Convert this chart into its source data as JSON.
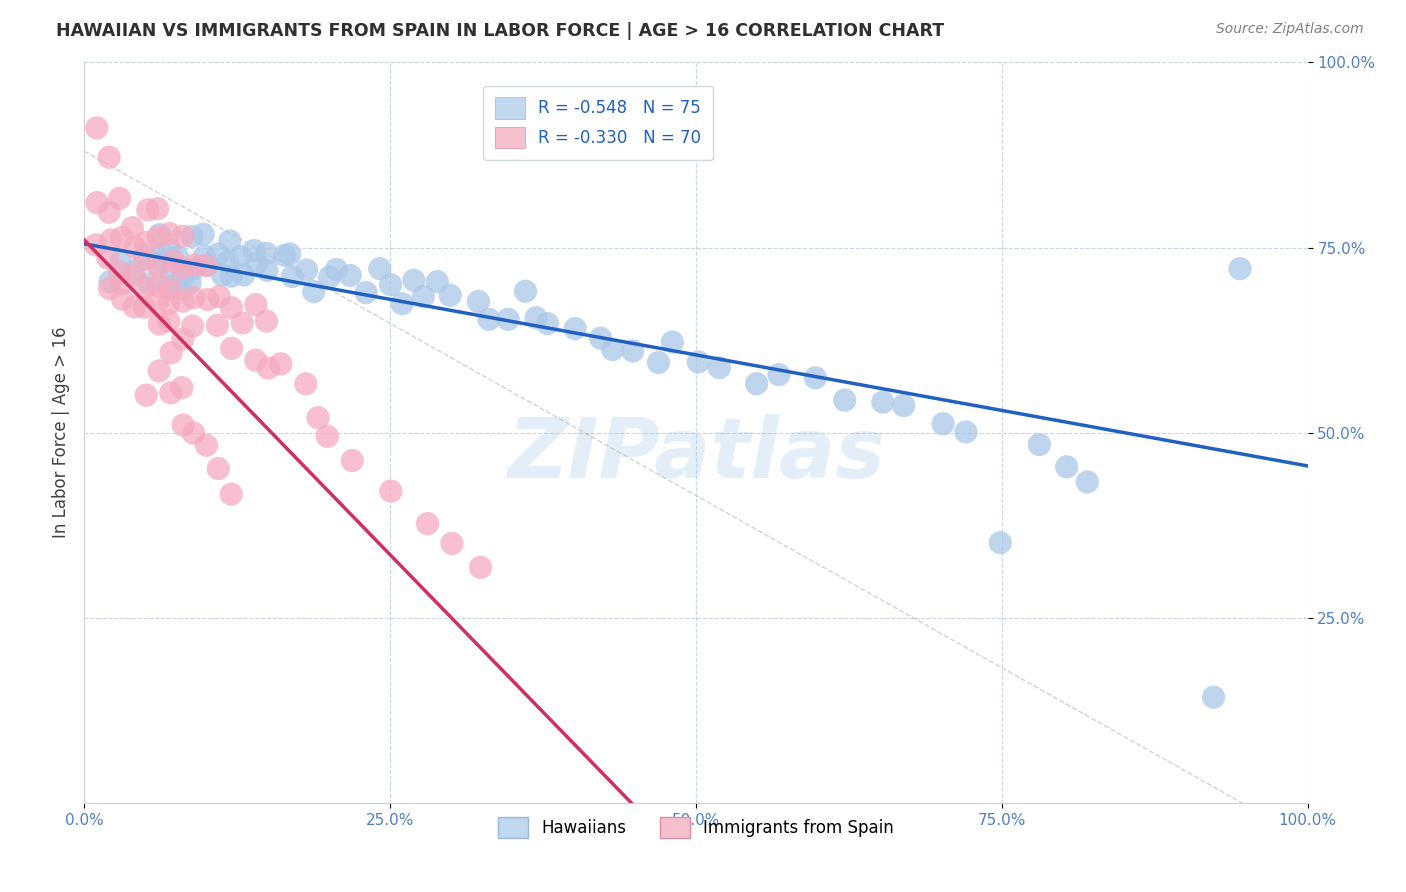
{
  "title": "HAWAIIAN VS IMMIGRANTS FROM SPAIN IN LABOR FORCE | AGE > 16 CORRELATION CHART",
  "source": "Source: ZipAtlas.com",
  "ylabel": "In Labor Force | Age > 16",
  "xlim": [
    0.0,
    1.0
  ],
  "ylim": [
    0.0,
    1.0
  ],
  "xtick_labels": [
    "0.0%",
    "25.0%",
    "50.0%",
    "75.0%",
    "100.0%"
  ],
  "xtick_values": [
    0.0,
    0.25,
    0.5,
    0.75,
    1.0
  ],
  "ytick_labels": [
    "100.0%",
    "75.0%",
    "50.0%",
    "25.0%"
  ],
  "ytick_values": [
    1.0,
    0.75,
    0.5,
    0.25
  ],
  "legend_r1": "R = -0.548",
  "legend_n1": "N = 75",
  "legend_r2": "R = -0.330",
  "legend_n2": "N = 70",
  "series1_color": "#aac8e8",
  "series2_color": "#f5aabf",
  "line1_color": "#2060c0",
  "line2_color": "#d03060",
  "watermark": "ZIPatlas",
  "background_color": "#ffffff",
  "haw_x": [
    0.02,
    0.03,
    0.04,
    0.05,
    0.05,
    0.06,
    0.06,
    0.06,
    0.07,
    0.07,
    0.07,
    0.08,
    0.08,
    0.08,
    0.09,
    0.09,
    0.09,
    0.1,
    0.1,
    0.1,
    0.11,
    0.11,
    0.12,
    0.12,
    0.12,
    0.13,
    0.13,
    0.14,
    0.14,
    0.15,
    0.15,
    0.16,
    0.17,
    0.17,
    0.18,
    0.19,
    0.2,
    0.21,
    0.22,
    0.23,
    0.24,
    0.25,
    0.26,
    0.27,
    0.28,
    0.29,
    0.3,
    0.32,
    0.33,
    0.35,
    0.36,
    0.37,
    0.38,
    0.4,
    0.42,
    0.43,
    0.45,
    0.47,
    0.48,
    0.5,
    0.52,
    0.55,
    0.57,
    0.6,
    0.62,
    0.65,
    0.67,
    0.7,
    0.72,
    0.75,
    0.78,
    0.8,
    0.82,
    0.92,
    0.95
  ],
  "haw_y": [
    0.7,
    0.73,
    0.72,
    0.7,
    0.75,
    0.73,
    0.74,
    0.76,
    0.7,
    0.72,
    0.75,
    0.69,
    0.71,
    0.74,
    0.7,
    0.72,
    0.76,
    0.73,
    0.74,
    0.77,
    0.72,
    0.74,
    0.71,
    0.73,
    0.76,
    0.72,
    0.74,
    0.73,
    0.75,
    0.72,
    0.74,
    0.73,
    0.71,
    0.74,
    0.72,
    0.7,
    0.71,
    0.72,
    0.7,
    0.69,
    0.72,
    0.7,
    0.68,
    0.7,
    0.68,
    0.7,
    0.69,
    0.67,
    0.66,
    0.65,
    0.68,
    0.66,
    0.65,
    0.64,
    0.63,
    0.62,
    0.61,
    0.6,
    0.62,
    0.6,
    0.58,
    0.57,
    0.58,
    0.57,
    0.55,
    0.54,
    0.53,
    0.52,
    0.5,
    0.35,
    0.48,
    0.46,
    0.44,
    0.14,
    0.72
  ],
  "spain_x": [
    0.01,
    0.01,
    0.01,
    0.02,
    0.02,
    0.02,
    0.02,
    0.02,
    0.03,
    0.03,
    0.03,
    0.03,
    0.03,
    0.04,
    0.04,
    0.04,
    0.04,
    0.05,
    0.05,
    0.05,
    0.05,
    0.05,
    0.06,
    0.06,
    0.06,
    0.06,
    0.06,
    0.06,
    0.07,
    0.07,
    0.07,
    0.07,
    0.07,
    0.08,
    0.08,
    0.08,
    0.08,
    0.09,
    0.09,
    0.09,
    0.1,
    0.1,
    0.11,
    0.11,
    0.12,
    0.12,
    0.13,
    0.14,
    0.14,
    0.15,
    0.15,
    0.16,
    0.18,
    0.19,
    0.2,
    0.22,
    0.25,
    0.28,
    0.3,
    0.32,
    0.05,
    0.06,
    0.07,
    0.07,
    0.08,
    0.08,
    0.09,
    0.1,
    0.11,
    0.12
  ],
  "spain_y": [
    0.9,
    0.82,
    0.75,
    0.88,
    0.8,
    0.73,
    0.76,
    0.7,
    0.82,
    0.76,
    0.72,
    0.7,
    0.68,
    0.78,
    0.74,
    0.71,
    0.68,
    0.8,
    0.76,
    0.73,
    0.7,
    0.67,
    0.8,
    0.76,
    0.73,
    0.7,
    0.68,
    0.65,
    0.76,
    0.73,
    0.7,
    0.67,
    0.64,
    0.76,
    0.73,
    0.68,
    0.62,
    0.73,
    0.68,
    0.64,
    0.73,
    0.68,
    0.7,
    0.65,
    0.67,
    0.62,
    0.64,
    0.68,
    0.6,
    0.65,
    0.58,
    0.6,
    0.56,
    0.52,
    0.5,
    0.46,
    0.42,
    0.38,
    0.35,
    0.32,
    0.55,
    0.58,
    0.6,
    0.56,
    0.55,
    0.52,
    0.5,
    0.48,
    0.45,
    0.42
  ]
}
